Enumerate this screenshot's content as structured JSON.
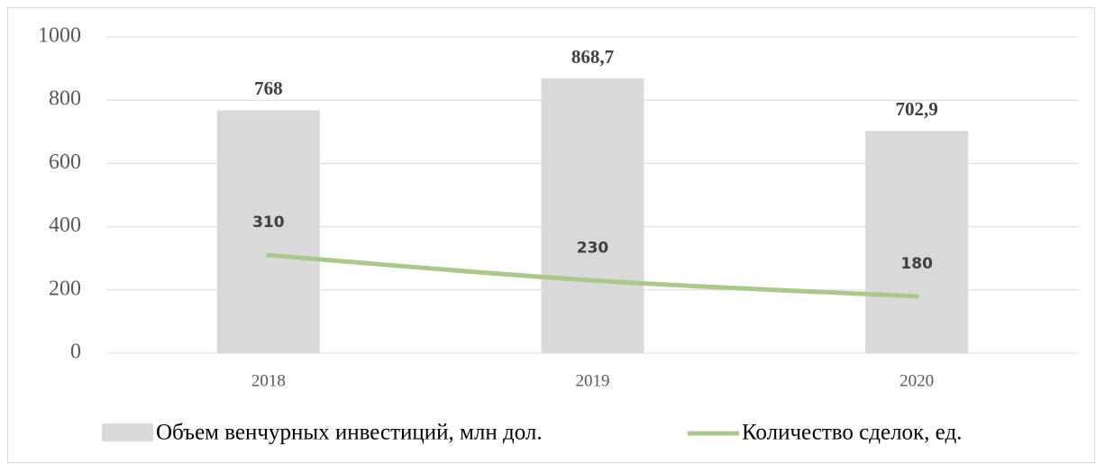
{
  "chart_data": {
    "type": "bar-line",
    "categories": [
      "2018",
      "2019",
      "2020"
    ],
    "series": [
      {
        "name": "Объем венчурных инвестиций, млн дол.",
        "type": "bar",
        "color": "#d9d9d9",
        "values": [
          768,
          868.7,
          702.9
        ],
        "value_labels": [
          "768",
          "868,7",
          "702,9"
        ]
      },
      {
        "name": "Количество сделок, ед.",
        "type": "line",
        "color": "#a9c98a",
        "values": [
          310,
          230,
          180
        ]
      }
    ],
    "ylim": [
      0,
      1000
    ],
    "yticks": [
      0,
      200,
      400,
      600,
      800,
      1000
    ],
    "grid": true,
    "legend": "bottom"
  }
}
